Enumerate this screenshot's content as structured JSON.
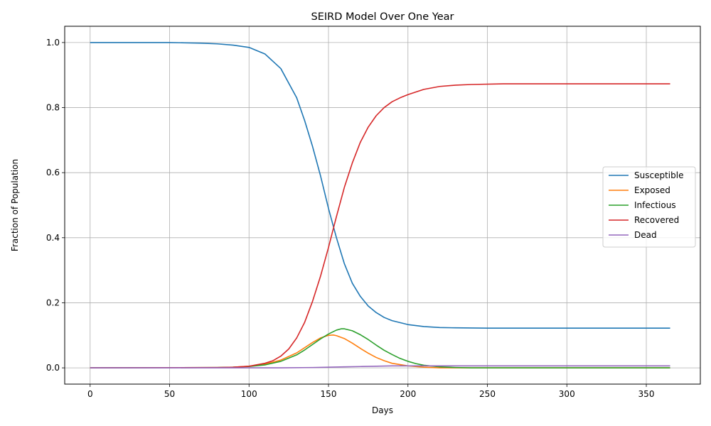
{
  "chart_data": {
    "type": "line",
    "title": "SEIRD Model Over One Year",
    "xlabel": "Days",
    "ylabel": "Fraction of Population",
    "xlim": [
      -16,
      384
    ],
    "ylim": [
      -0.05,
      1.05
    ],
    "xticks": [
      0,
      50,
      100,
      150,
      200,
      250,
      300,
      350
    ],
    "yticks": [
      0.0,
      0.2,
      0.4,
      0.6,
      0.8,
      1.0
    ],
    "grid": true,
    "legend_position": "center-right",
    "series": [
      {
        "name": "Susceptible",
        "color": "#1f77b4",
        "points": [
          [
            0,
            1.0
          ],
          [
            50,
            1.0
          ],
          [
            70,
            0.998
          ],
          [
            80,
            0.996
          ],
          [
            90,
            0.992
          ],
          [
            100,
            0.985
          ],
          [
            110,
            0.965
          ],
          [
            120,
            0.92
          ],
          [
            130,
            0.83
          ],
          [
            135,
            0.76
          ],
          [
            140,
            0.68
          ],
          [
            145,
            0.59
          ],
          [
            150,
            0.49
          ],
          [
            155,
            0.4
          ],
          [
            160,
            0.32
          ],
          [
            165,
            0.26
          ],
          [
            170,
            0.22
          ],
          [
            175,
            0.19
          ],
          [
            180,
            0.17
          ],
          [
            185,
            0.155
          ],
          [
            190,
            0.145
          ],
          [
            200,
            0.133
          ],
          [
            210,
            0.127
          ],
          [
            220,
            0.124
          ],
          [
            230,
            0.123
          ],
          [
            250,
            0.122
          ],
          [
            300,
            0.122
          ],
          [
            365,
            0.122
          ]
        ]
      },
      {
        "name": "Exposed",
        "color": "#ff7f0e",
        "points": [
          [
            0,
            0.0
          ],
          [
            80,
            0.001
          ],
          [
            90,
            0.002
          ],
          [
            100,
            0.005
          ],
          [
            110,
            0.011
          ],
          [
            120,
            0.024
          ],
          [
            130,
            0.046
          ],
          [
            135,
            0.062
          ],
          [
            140,
            0.078
          ],
          [
            145,
            0.092
          ],
          [
            150,
            0.1
          ],
          [
            153,
            0.101
          ],
          [
            155,
            0.099
          ],
          [
            160,
            0.09
          ],
          [
            165,
            0.076
          ],
          [
            170,
            0.06
          ],
          [
            175,
            0.045
          ],
          [
            180,
            0.032
          ],
          [
            185,
            0.022
          ],
          [
            190,
            0.014
          ],
          [
            200,
            0.006
          ],
          [
            210,
            0.002
          ],
          [
            220,
            0.0
          ],
          [
            365,
            0.0
          ]
        ]
      },
      {
        "name": "Infectious",
        "color": "#2ca02c",
        "points": [
          [
            0,
            0.0
          ],
          [
            80,
            0.001
          ],
          [
            90,
            0.002
          ],
          [
            100,
            0.004
          ],
          [
            110,
            0.009
          ],
          [
            120,
            0.02
          ],
          [
            130,
            0.04
          ],
          [
            135,
            0.055
          ],
          [
            140,
            0.072
          ],
          [
            145,
            0.089
          ],
          [
            150,
            0.104
          ],
          [
            155,
            0.116
          ],
          [
            158,
            0.12
          ],
          [
            160,
            0.12
          ],
          [
            165,
            0.114
          ],
          [
            170,
            0.102
          ],
          [
            175,
            0.087
          ],
          [
            180,
            0.07
          ],
          [
            185,
            0.054
          ],
          [
            190,
            0.041
          ],
          [
            195,
            0.029
          ],
          [
            200,
            0.02
          ],
          [
            205,
            0.013
          ],
          [
            210,
            0.008
          ],
          [
            220,
            0.003
          ],
          [
            230,
            0.001
          ],
          [
            240,
            0.0
          ],
          [
            365,
            0.0
          ]
        ]
      },
      {
        "name": "Recovered",
        "color": "#d62728",
        "points": [
          [
            0,
            0.0
          ],
          [
            80,
            0.001
          ],
          [
            90,
            0.002
          ],
          [
            100,
            0.005
          ],
          [
            110,
            0.014
          ],
          [
            115,
            0.022
          ],
          [
            120,
            0.036
          ],
          [
            125,
            0.058
          ],
          [
            130,
            0.092
          ],
          [
            135,
            0.14
          ],
          [
            140,
            0.205
          ],
          [
            145,
            0.282
          ],
          [
            150,
            0.37
          ],
          [
            155,
            0.465
          ],
          [
            160,
            0.555
          ],
          [
            165,
            0.63
          ],
          [
            170,
            0.693
          ],
          [
            175,
            0.74
          ],
          [
            180,
            0.775
          ],
          [
            185,
            0.8
          ],
          [
            190,
            0.818
          ],
          [
            195,
            0.83
          ],
          [
            200,
            0.84
          ],
          [
            210,
            0.856
          ],
          [
            220,
            0.865
          ],
          [
            230,
            0.869
          ],
          [
            240,
            0.871
          ],
          [
            260,
            0.873
          ],
          [
            365,
            0.873
          ]
        ]
      },
      {
        "name": "Dead",
        "color": "#9467bd",
        "points": [
          [
            0,
            0.0
          ],
          [
            120,
            0.0
          ],
          [
            140,
            0.001
          ],
          [
            150,
            0.002
          ],
          [
            160,
            0.003
          ],
          [
            170,
            0.004
          ],
          [
            180,
            0.005
          ],
          [
            190,
            0.006
          ],
          [
            200,
            0.006
          ],
          [
            250,
            0.006
          ],
          [
            365,
            0.006
          ]
        ]
      }
    ]
  }
}
